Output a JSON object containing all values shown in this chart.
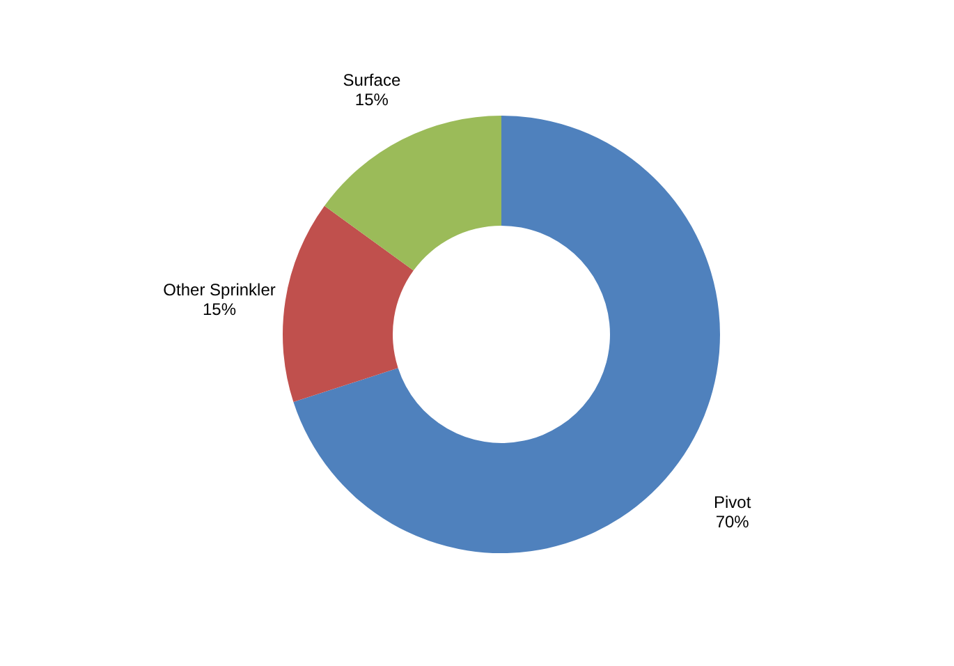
{
  "chart_data": {
    "type": "donut",
    "categories": [
      "Pivot",
      "Other Sprinkler",
      "Surface"
    ],
    "values": [
      70,
      15,
      15
    ],
    "value_labels": [
      "70%",
      "15%",
      "15%"
    ],
    "colors": [
      "#4f81bd",
      "#c0504d",
      "#9bbb59"
    ],
    "legend": false
  }
}
